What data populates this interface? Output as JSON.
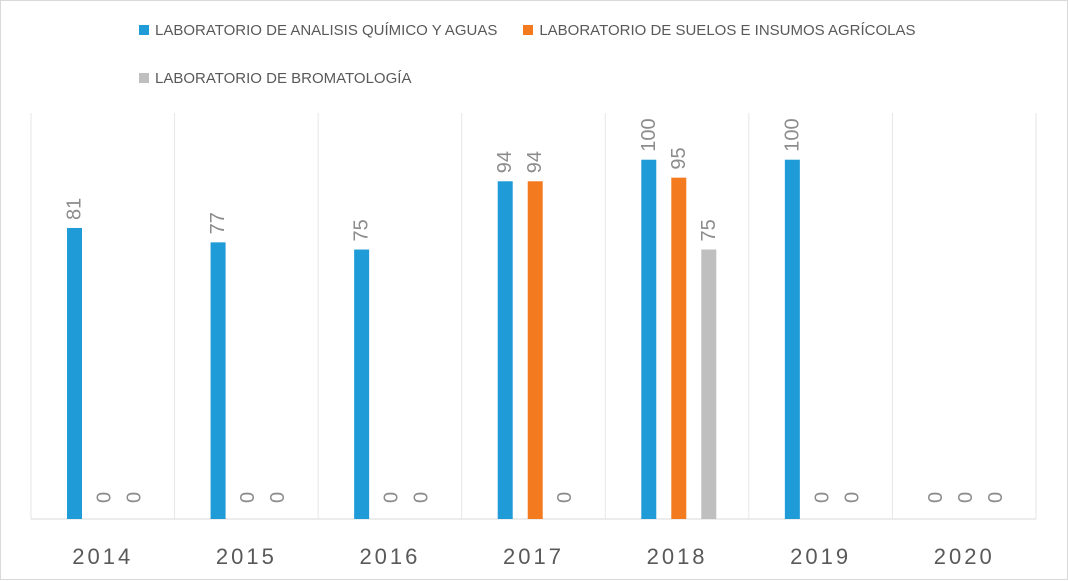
{
  "chart_data": {
    "type": "bar",
    "categories": [
      "2014",
      "2015",
      "2016",
      "2017",
      "2018",
      "2019",
      "2020"
    ],
    "series": [
      {
        "name": "LABORATORIO DE ANALISIS QUÍMICO Y AGUAS",
        "color": "#1f9cd8",
        "values": [
          81,
          77,
          75,
          94,
          100,
          100,
          0
        ]
      },
      {
        "name": "LABORATORIO DE SUELOS E INSUMOS AGRÍCOLAS",
        "color": "#f47a20",
        "values": [
          0,
          0,
          0,
          94,
          95,
          0,
          0
        ]
      },
      {
        "name": "LABORATORIO DE BROMATOLOGÍA",
        "color": "#bfbfbf",
        "values": [
          0,
          0,
          0,
          0,
          75,
          0,
          0
        ]
      }
    ],
    "ylim": [
      0,
      113
    ],
    "grid": false,
    "legend_position": "top",
    "data_labels": true
  }
}
